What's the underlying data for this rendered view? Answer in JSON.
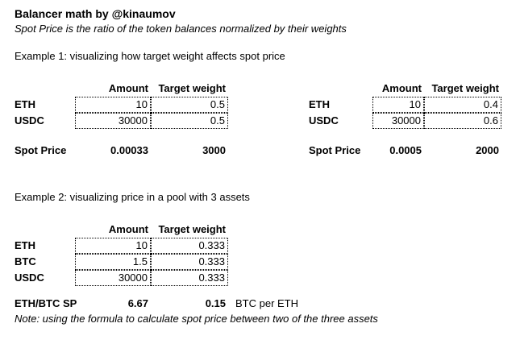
{
  "page": {
    "title": "Balancer math by @kinaumov",
    "subtitle": "Spot Price is the ratio of the token balances normalized by their weights"
  },
  "colors": {
    "text": "#000000",
    "background": "#ffffff",
    "cell_border": "#000000"
  },
  "example1": {
    "heading": "Example 1: visualizing how target weight affects spot price",
    "pools": [
      {
        "headers": {
          "amount": "Amount",
          "target_weight": "Target weight"
        },
        "rows": [
          {
            "asset": "ETH",
            "amount": "10",
            "target_weight": "0.5"
          },
          {
            "asset": "USDC",
            "amount": "30000",
            "target_weight": "0.5"
          }
        ],
        "spot_price": {
          "label": "Spot Price",
          "value_a": "0.00033",
          "value_b": "3000"
        }
      },
      {
        "headers": {
          "amount": "Amount",
          "target_weight": "Target weight"
        },
        "rows": [
          {
            "asset": "ETH",
            "amount": "10",
            "target_weight": "0.4"
          },
          {
            "asset": "USDC",
            "amount": "30000",
            "target_weight": "0.6"
          }
        ],
        "spot_price": {
          "label": "Spot Price",
          "value_a": "0.0005",
          "value_b": "2000"
        }
      }
    ]
  },
  "example2": {
    "heading": "Example 2: visualizing price in a pool with 3 assets",
    "headers": {
      "amount": "Amount",
      "target_weight": "Target weight"
    },
    "rows": [
      {
        "asset": "ETH",
        "amount": "10",
        "target_weight": "0.333"
      },
      {
        "asset": "BTC",
        "amount": "1.5",
        "target_weight": "0.333"
      },
      {
        "asset": "USDC",
        "amount": "30000",
        "target_weight": "0.333"
      }
    ],
    "result": {
      "label": "ETH/BTC SP",
      "value_a": "6.67",
      "value_b": "0.15",
      "unit": "BTC per ETH"
    },
    "note": "Note: using the formula to calculate spot price between two of the three assets"
  }
}
